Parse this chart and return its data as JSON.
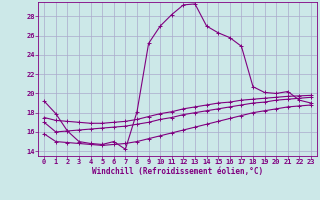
{
  "bg_color": "#cce8e8",
  "line_color": "#800080",
  "grid_color": "#aaaacc",
  "xlabel": "Windchill (Refroidissement éolien,°C)",
  "ylabel_ticks": [
    14,
    16,
    18,
    20,
    22,
    24,
    26,
    28
  ],
  "xticks": [
    0,
    1,
    2,
    3,
    4,
    5,
    6,
    7,
    8,
    9,
    10,
    11,
    12,
    13,
    14,
    15,
    16,
    17,
    18,
    19,
    20,
    21,
    22,
    23
  ],
  "xlim": [
    -0.5,
    23.5
  ],
  "ylim": [
    13.5,
    29.5
  ],
  "series1_x": [
    0,
    1,
    2,
    3,
    4,
    5,
    6,
    7,
    8,
    9,
    10,
    11,
    12,
    13,
    14,
    15,
    16,
    17,
    18,
    19,
    20,
    21,
    22,
    23
  ],
  "series1_y": [
    19.2,
    17.9,
    16.1,
    15.0,
    14.8,
    14.7,
    15.0,
    14.2,
    18.1,
    25.2,
    27.0,
    28.2,
    29.2,
    29.3,
    27.0,
    26.3,
    25.8,
    24.9,
    20.7,
    20.1,
    20.0,
    20.2,
    19.3,
    19.0
  ],
  "series2_x": [
    0,
    1,
    2,
    3,
    4,
    5,
    6,
    7,
    8,
    9,
    10,
    11,
    12,
    13,
    14,
    15,
    16,
    17,
    18,
    19,
    20,
    21,
    22,
    23
  ],
  "series2_y": [
    17.0,
    16.0,
    16.1,
    16.2,
    16.3,
    16.4,
    16.5,
    16.6,
    16.8,
    17.0,
    17.3,
    17.5,
    17.8,
    18.0,
    18.2,
    18.4,
    18.6,
    18.8,
    19.0,
    19.1,
    19.3,
    19.4,
    19.5,
    19.6
  ],
  "series3_x": [
    0,
    1,
    2,
    3,
    4,
    5,
    6,
    7,
    8,
    9,
    10,
    11,
    12,
    13,
    14,
    15,
    16,
    17,
    18,
    19,
    20,
    21,
    22,
    23
  ],
  "series3_y": [
    15.8,
    15.0,
    14.9,
    14.8,
    14.7,
    14.6,
    14.7,
    14.8,
    15.0,
    15.3,
    15.6,
    15.9,
    16.2,
    16.5,
    16.8,
    17.1,
    17.4,
    17.7,
    18.0,
    18.2,
    18.4,
    18.6,
    18.7,
    18.8
  ],
  "series4_x": [
    0,
    1,
    2,
    3,
    4,
    5,
    6,
    7,
    8,
    9,
    10,
    11,
    12,
    13,
    14,
    15,
    16,
    17,
    18,
    19,
    20,
    21,
    22,
    23
  ],
  "series4_y": [
    17.5,
    17.2,
    17.1,
    17.0,
    16.9,
    16.9,
    17.0,
    17.1,
    17.3,
    17.6,
    17.9,
    18.1,
    18.4,
    18.6,
    18.8,
    19.0,
    19.1,
    19.3,
    19.4,
    19.5,
    19.6,
    19.7,
    19.75,
    19.8
  ],
  "marker": "+",
  "marker_size": 3,
  "line_width": 0.8
}
